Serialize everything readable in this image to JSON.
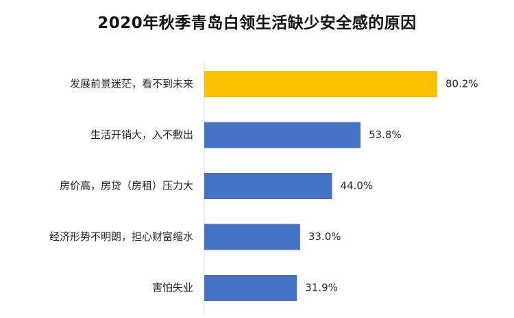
{
  "chart_data": {
    "type": "bar",
    "orientation": "horizontal",
    "title": "2020年秋季青岛白领生活缺少安全感的原因",
    "categories": [
      "发展前景迷茫，看不到未来",
      "生活开销大，入不敷出",
      "房价高，房贷（房租）压力大",
      "经济形势不明朗，担心财富缩水",
      "害怕失业"
    ],
    "values": [
      80.2,
      53.8,
      44.0,
      33.0,
      31.9
    ],
    "value_labels": [
      "80.2%",
      "53.8%",
      "44.0%",
      "33.0%",
      "31.9%"
    ],
    "unit": "%",
    "xlim": [
      0,
      100
    ],
    "colors": [
      "#ffc000",
      "#4472c4",
      "#4472c4",
      "#4472c4",
      "#4472c4"
    ],
    "grid": false,
    "legend": "none"
  }
}
